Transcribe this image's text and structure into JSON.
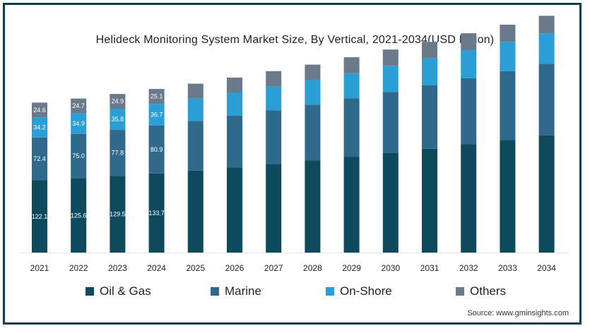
{
  "chart_data": {
    "type": "bar",
    "stacked": true,
    "title": "Helideck Monitoring System Market Size, By Vertical, 2021-2034(USD Billion)",
    "categories": [
      "2021",
      "2022",
      "2023",
      "2024",
      "2025",
      "2026",
      "2027",
      "2028",
      "2029",
      "2030",
      "2031",
      "2032",
      "2033",
      "2034"
    ],
    "series": [
      {
        "name": "Oil & Gas",
        "color": "#0d4a5e",
        "values": [
          122.1,
          125.6,
          129.5,
          133.7,
          138.5,
          144.0,
          149.5,
          155.5,
          162.0,
          168.5,
          175.5,
          183.0,
          190.5,
          198.0
        ],
        "labels": [
          "122.1",
          "125.6",
          "129.5",
          "133.7",
          null,
          null,
          null,
          null,
          null,
          null,
          null,
          null,
          null,
          null
        ]
      },
      {
        "name": "Marine",
        "color": "#2f6a8c",
        "values": [
          72.4,
          75.0,
          77.8,
          80.9,
          84.0,
          87.5,
          91.0,
          94.5,
          98.5,
          103.0,
          107.0,
          111.5,
          116.0,
          121.0
        ],
        "labels": [
          "72.4",
          "75.0",
          "77.8",
          "80.9",
          null,
          null,
          null,
          null,
          null,
          null,
          null,
          null,
          null,
          null
        ]
      },
      {
        "name": "On-Shore",
        "color": "#2a9fd6",
        "values": [
          34.2,
          34.9,
          35.8,
          36.7,
          37.5,
          38.5,
          40.0,
          41.0,
          42.5,
          44.0,
          45.5,
          47.5,
          49.5,
          51.5
        ],
        "labels": [
          "34.2",
          "34.9",
          "35.8",
          "36.7",
          null,
          null,
          null,
          null,
          null,
          null,
          null,
          null,
          null,
          null
        ]
      },
      {
        "name": "Others",
        "color": "#6b7a8a",
        "values": [
          24.6,
          24.7,
          24.9,
          25.1,
          25.3,
          25.6,
          26.0,
          26.5,
          27.0,
          27.5,
          28.0,
          28.5,
          29.0,
          29.5
        ],
        "labels": [
          "24.6",
          "24.7",
          "24.9",
          "25.1",
          null,
          null,
          null,
          null,
          null,
          null,
          null,
          null,
          null,
          null
        ]
      }
    ],
    "ylim": [
      0,
      410
    ],
    "grid": false,
    "legend": "bottom"
  },
  "source": "Source: www.gminsights.com"
}
